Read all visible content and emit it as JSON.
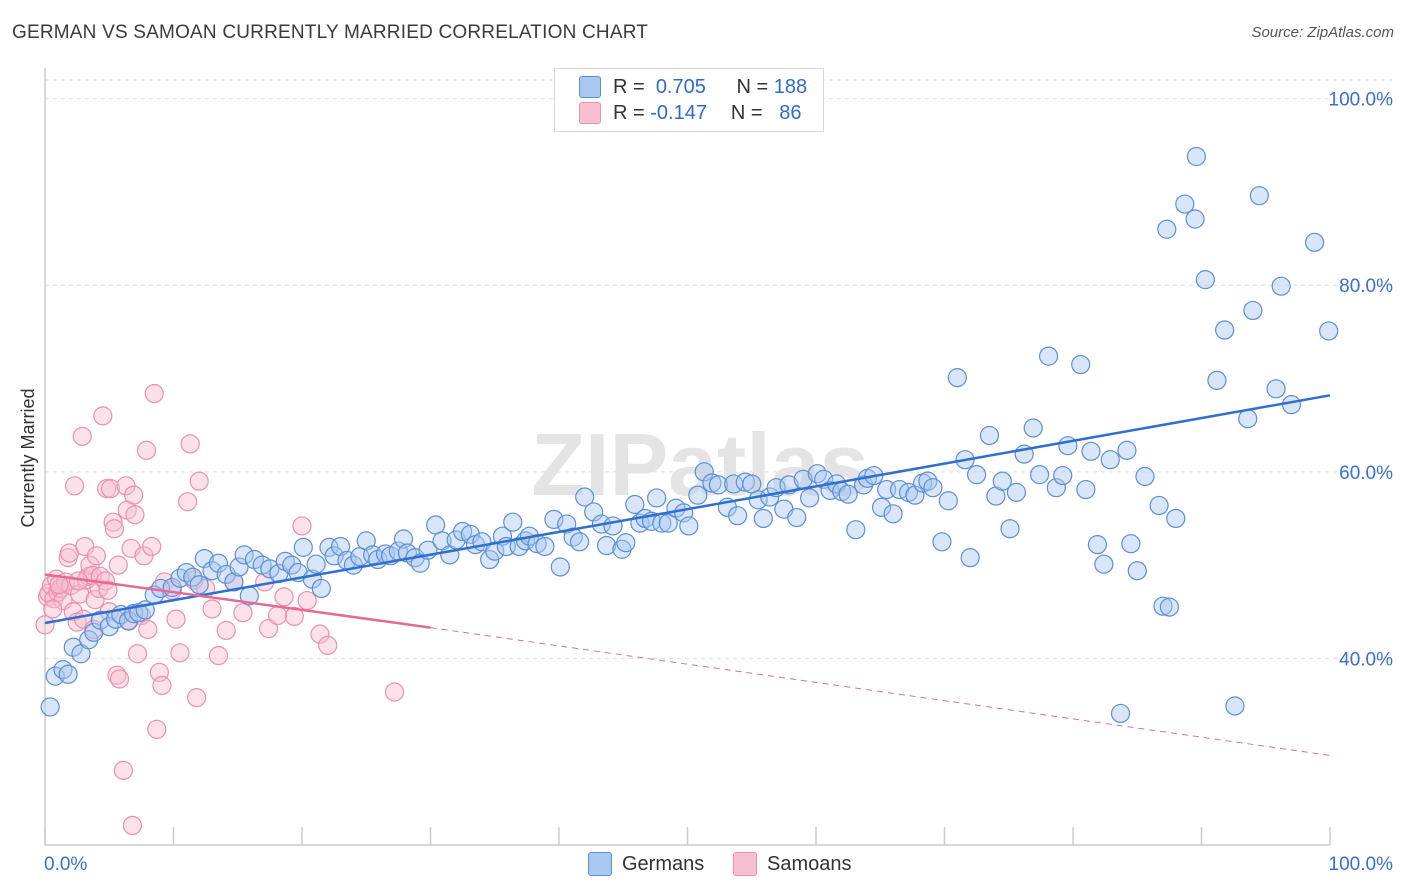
{
  "title": "GERMAN VS SAMOAN CURRENTLY MARRIED CORRELATION CHART",
  "source": "Source: ZipAtlas.com",
  "watermark": "ZIPatlas",
  "legend": {
    "german": {
      "r_label": "R =",
      "r_value": "0.705",
      "n_label": "N =",
      "n_value": "188"
    },
    "samoan": {
      "r_label": "R =",
      "r_value": "-0.147",
      "n_label": "N =",
      "n_value": "86"
    }
  },
  "bottom_legend": {
    "german": "Germans",
    "samoan": "Samoans"
  },
  "colors": {
    "german_fill": "#a9c8f0",
    "german_stroke": "#5b8fd8",
    "german_line": "#2f6fd0",
    "samoan_fill": "#f7bfd0",
    "samoan_stroke": "#ec8fad",
    "samoan_line": "#e56b95",
    "axis_text": "#3a6fd0",
    "grid": "#dddddd"
  },
  "chart_data": {
    "type": "scatter",
    "title": "GERMAN VS SAMOAN CURRENTLY MARRIED CORRELATION CHART",
    "xlabel": "",
    "ylabel": "Currently Married",
    "xlim": [
      0,
      100
    ],
    "ylim": [
      20,
      102
    ],
    "x_tick_labels": {
      "left": "0.0%",
      "right": "100.0%"
    },
    "y_ticks": [
      40,
      60,
      80,
      100
    ],
    "y_tick_labels": [
      "40.0%",
      "60.0%",
      "80.0%",
      "100.0%"
    ],
    "series": [
      {
        "name": "Germans",
        "trend": {
          "x": [
            0,
            100
          ],
          "y": [
            43.8,
            68.2
          ],
          "style": "solid"
        },
        "points": [
          [
            0.4,
            34.8
          ],
          [
            0.8,
            38.1
          ],
          [
            1.4,
            38.8
          ],
          [
            1.8,
            38.3
          ],
          [
            2.2,
            41.2
          ],
          [
            2.8,
            40.5
          ],
          [
            3.4,
            42.0
          ],
          [
            3.8,
            42.8
          ],
          [
            4.3,
            44.1
          ],
          [
            5.0,
            43.4
          ],
          [
            5.5,
            44.2
          ],
          [
            5.9,
            44.7
          ],
          [
            6.5,
            44.0
          ],
          [
            6.9,
            44.8
          ],
          [
            7.3,
            44.9
          ],
          [
            7.8,
            45.2
          ],
          [
            8.5,
            46.8
          ],
          [
            9.0,
            47.5
          ],
          [
            9.9,
            47.6
          ],
          [
            10.5,
            48.6
          ],
          [
            11.0,
            49.2
          ],
          [
            11.5,
            48.7
          ],
          [
            12.0,
            47.9
          ],
          [
            12.4,
            50.7
          ],
          [
            13.0,
            49.4
          ],
          [
            13.5,
            50.2
          ],
          [
            14.1,
            49.0
          ],
          [
            14.7,
            48.2
          ],
          [
            15.1,
            49.8
          ],
          [
            15.5,
            51.1
          ],
          [
            15.9,
            46.7
          ],
          [
            16.3,
            50.6
          ],
          [
            16.9,
            50.0
          ],
          [
            17.5,
            49.6
          ],
          [
            18.2,
            49.1
          ],
          [
            18.7,
            50.4
          ],
          [
            19.2,
            50.0
          ],
          [
            19.7,
            49.2
          ],
          [
            20.1,
            51.9
          ],
          [
            20.8,
            48.5
          ],
          [
            21.1,
            50.1
          ],
          [
            21.5,
            47.5
          ],
          [
            22.1,
            51.9
          ],
          [
            22.5,
            51.0
          ],
          [
            23.0,
            52.0
          ],
          [
            23.5,
            50.5
          ],
          [
            24.0,
            50.0
          ],
          [
            24.5,
            50.9
          ],
          [
            25.0,
            52.6
          ],
          [
            25.5,
            51.1
          ],
          [
            25.9,
            50.6
          ],
          [
            26.5,
            51.2
          ],
          [
            26.9,
            51.0
          ],
          [
            27.5,
            51.5
          ],
          [
            27.9,
            52.8
          ],
          [
            28.2,
            51.3
          ],
          [
            28.8,
            50.8
          ],
          [
            29.2,
            50.2
          ],
          [
            29.8,
            51.6
          ],
          [
            30.4,
            54.3
          ],
          [
            30.9,
            52.6
          ],
          [
            31.5,
            51.1
          ],
          [
            32.0,
            52.7
          ],
          [
            32.5,
            53.6
          ],
          [
            33.1,
            53.3
          ],
          [
            33.5,
            52.2
          ],
          [
            34.0,
            52.5
          ],
          [
            34.6,
            50.6
          ],
          [
            35.0,
            51.5
          ],
          [
            35.6,
            53.1
          ],
          [
            35.9,
            52.0
          ],
          [
            36.4,
            54.6
          ],
          [
            36.9,
            52.0
          ],
          [
            37.4,
            52.6
          ],
          [
            37.7,
            53.1
          ],
          [
            38.3,
            52.3
          ],
          [
            38.9,
            52.0
          ],
          [
            39.6,
            54.9
          ],
          [
            40.1,
            49.8
          ],
          [
            40.6,
            54.4
          ],
          [
            41.1,
            53.0
          ],
          [
            41.6,
            52.5
          ],
          [
            42.0,
            57.3
          ],
          [
            42.7,
            55.7
          ],
          [
            43.3,
            54.4
          ],
          [
            43.7,
            52.1
          ],
          [
            44.2,
            54.2
          ],
          [
            44.9,
            51.7
          ],
          [
            45.2,
            52.4
          ],
          [
            45.9,
            56.5
          ],
          [
            46.3,
            54.5
          ],
          [
            46.7,
            55.0
          ],
          [
            47.2,
            54.7
          ],
          [
            47.6,
            57.2
          ],
          [
            48.0,
            54.5
          ],
          [
            48.5,
            54.5
          ],
          [
            49.1,
            56.1
          ],
          [
            49.7,
            55.6
          ],
          [
            50.1,
            54.2
          ],
          [
            50.8,
            57.5
          ],
          [
            51.3,
            60.0
          ],
          [
            51.9,
            58.8
          ],
          [
            52.4,
            58.6
          ],
          [
            53.1,
            56.2
          ],
          [
            53.6,
            58.7
          ],
          [
            53.9,
            55.3
          ],
          [
            54.5,
            58.9
          ],
          [
            55.0,
            58.7
          ],
          [
            55.5,
            57.0
          ],
          [
            55.9,
            55.0
          ],
          [
            56.4,
            57.3
          ],
          [
            56.9,
            58.3
          ],
          [
            57.5,
            56.0
          ],
          [
            57.9,
            58.6
          ],
          [
            58.5,
            55.1
          ],
          [
            59.0,
            59.2
          ],
          [
            59.5,
            57.2
          ],
          [
            60.1,
            59.8
          ],
          [
            60.6,
            59.2
          ],
          [
            61.1,
            58.0
          ],
          [
            61.6,
            58.7
          ],
          [
            62.0,
            57.9
          ],
          [
            62.5,
            57.6
          ],
          [
            63.1,
            53.8
          ],
          [
            63.7,
            58.6
          ],
          [
            64.0,
            59.3
          ],
          [
            64.5,
            59.6
          ],
          [
            65.1,
            56.2
          ],
          [
            65.5,
            58.1
          ],
          [
            66.0,
            55.5
          ],
          [
            66.5,
            58.1
          ],
          [
            67.2,
            57.8
          ],
          [
            67.7,
            57.5
          ],
          [
            68.3,
            58.8
          ],
          [
            68.7,
            59.0
          ],
          [
            69.1,
            58.3
          ],
          [
            69.8,
            52.5
          ],
          [
            70.3,
            56.9
          ],
          [
            71.0,
            70.1
          ],
          [
            71.6,
            61.3
          ],
          [
            72.0,
            50.8
          ],
          [
            72.5,
            59.7
          ],
          [
            73.5,
            63.9
          ],
          [
            74.0,
            57.4
          ],
          [
            74.5,
            59.0
          ],
          [
            75.1,
            53.9
          ],
          [
            75.6,
            57.8
          ],
          [
            76.2,
            61.9
          ],
          [
            76.9,
            64.7
          ],
          [
            77.4,
            59.7
          ],
          [
            78.1,
            72.4
          ],
          [
            78.7,
            58.3
          ],
          [
            79.2,
            59.6
          ],
          [
            79.6,
            62.8
          ],
          [
            80.6,
            71.5
          ],
          [
            81.0,
            58.1
          ],
          [
            81.4,
            62.2
          ],
          [
            81.9,
            52.2
          ],
          [
            82.4,
            50.1
          ],
          [
            82.9,
            61.3
          ],
          [
            83.7,
            34.1
          ],
          [
            84.2,
            62.3
          ],
          [
            84.5,
            52.3
          ],
          [
            85.0,
            49.4
          ],
          [
            85.6,
            59.5
          ],
          [
            86.7,
            56.4
          ],
          [
            87.0,
            45.6
          ],
          [
            87.5,
            45.5
          ],
          [
            88.0,
            55.0
          ],
          [
            87.3,
            86.0
          ],
          [
            88.7,
            88.7
          ],
          [
            89.6,
            93.8
          ],
          [
            90.3,
            80.6
          ],
          [
            91.2,
            69.8
          ],
          [
            91.8,
            75.2
          ],
          [
            92.6,
            34.9
          ],
          [
            93.6,
            65.7
          ],
          [
            94.0,
            77.3
          ],
          [
            94.5,
            89.6
          ],
          [
            95.8,
            68.9
          ],
          [
            96.2,
            79.9
          ],
          [
            97.0,
            67.2
          ],
          [
            98.8,
            84.6
          ],
          [
            99.9,
            75.1
          ],
          [
            89.5,
            87.1
          ]
        ]
      },
      {
        "name": "Samoans",
        "trend": {
          "x": [
            0,
            30
          ],
          "y": [
            49.0,
            43.3
          ],
          "style": "solid",
          "dashed_to": [
            100,
            29.6
          ]
        },
        "points": [
          [
            0.0,
            43.6
          ],
          [
            0.2,
            46.6
          ],
          [
            0.3,
            47.0
          ],
          [
            0.5,
            47.8
          ],
          [
            0.7,
            46.4
          ],
          [
            0.9,
            48.5
          ],
          [
            1.0,
            47.1
          ],
          [
            1.2,
            47.5
          ],
          [
            1.4,
            46.2
          ],
          [
            1.6,
            48.2
          ],
          [
            1.8,
            50.8
          ],
          [
            1.9,
            51.3
          ],
          [
            2.0,
            47.8
          ],
          [
            2.2,
            45.0
          ],
          [
            2.3,
            58.5
          ],
          [
            2.5,
            43.9
          ],
          [
            2.7,
            46.9
          ],
          [
            2.9,
            63.8
          ],
          [
            3.0,
            44.2
          ],
          [
            3.1,
            52.0
          ],
          [
            3.2,
            48.4
          ],
          [
            3.4,
            48.8
          ],
          [
            3.5,
            50.0
          ],
          [
            3.7,
            48.9
          ],
          [
            3.8,
            43.1
          ],
          [
            3.9,
            46.3
          ],
          [
            4.0,
            51.0
          ],
          [
            4.2,
            47.5
          ],
          [
            4.3,
            48.8
          ],
          [
            4.5,
            66.0
          ],
          [
            4.7,
            48.3
          ],
          [
            4.8,
            58.2
          ],
          [
            4.9,
            47.3
          ],
          [
            5.0,
            45.0
          ],
          [
            5.1,
            58.2
          ],
          [
            5.3,
            54.6
          ],
          [
            5.4,
            53.9
          ],
          [
            5.6,
            38.2
          ],
          [
            5.7,
            50.0
          ],
          [
            5.8,
            37.8
          ],
          [
            6.1,
            28.0
          ],
          [
            6.3,
            58.5
          ],
          [
            6.4,
            55.9
          ],
          [
            6.5,
            44.1
          ],
          [
            6.7,
            51.8
          ],
          [
            6.8,
            22.1
          ],
          [
            6.9,
            57.5
          ],
          [
            7.0,
            55.4
          ],
          [
            7.2,
            40.5
          ],
          [
            7.5,
            44.6
          ],
          [
            7.7,
            51.0
          ],
          [
            7.9,
            62.3
          ],
          [
            8.0,
            43.1
          ],
          [
            8.3,
            52.0
          ],
          [
            8.5,
            68.4
          ],
          [
            8.7,
            32.4
          ],
          [
            8.9,
            38.5
          ],
          [
            9.1,
            37.1
          ],
          [
            9.3,
            48.2
          ],
          [
            9.9,
            47.3
          ],
          [
            10.2,
            44.2
          ],
          [
            10.5,
            40.6
          ],
          [
            11.1,
            56.8
          ],
          [
            11.3,
            63.0
          ],
          [
            11.6,
            48.4
          ],
          [
            11.8,
            35.8
          ],
          [
            12.0,
            59.0
          ],
          [
            12.5,
            47.5
          ],
          [
            13.0,
            45.3
          ],
          [
            13.5,
            40.3
          ],
          [
            14.1,
            43.0
          ],
          [
            14.7,
            48.2
          ],
          [
            15.4,
            44.9
          ],
          [
            17.1,
            48.2
          ],
          [
            17.4,
            43.2
          ],
          [
            18.1,
            44.6
          ],
          [
            18.6,
            46.6
          ],
          [
            19.4,
            44.5
          ],
          [
            20.0,
            54.2
          ],
          [
            20.4,
            46.2
          ],
          [
            21.4,
            42.6
          ],
          [
            22.0,
            41.4
          ],
          [
            27.2,
            36.4
          ],
          [
            0.6,
            45.3
          ],
          [
            1.1,
            47.9
          ],
          [
            2.6,
            48.3
          ]
        ]
      }
    ]
  }
}
